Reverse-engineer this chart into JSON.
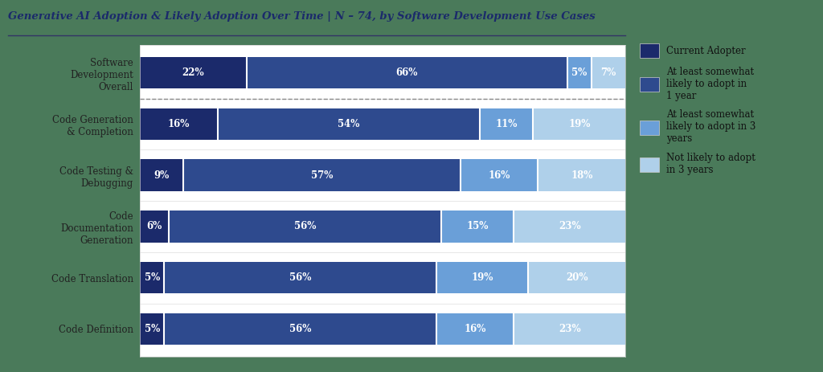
{
  "title": "Generative AI Adoption & Likely Adoption Over Time | N – 74, by Software Development Use Cases",
  "categories": [
    "Code Definition",
    "Code Translation",
    "Code\nDocumentation\nGeneration",
    "Code Testing &\nDebugging",
    "Code Generation\n& Completion",
    "Software\nDevelopment\nOverall"
  ],
  "segments": {
    "current": [
      5,
      5,
      6,
      9,
      16,
      22
    ],
    "year1": [
      56,
      56,
      56,
      57,
      54,
      66
    ],
    "year3": [
      16,
      19,
      15,
      16,
      11,
      5
    ],
    "not": [
      23,
      20,
      23,
      18,
      19,
      7
    ]
  },
  "colors": {
    "current": "#1b2a6b",
    "year1": "#2e4a8e",
    "year3": "#6a9fd8",
    "not": "#afd0ea"
  },
  "legend_labels": [
    "Current Adopter",
    "At least somewhat\nlikely to adopt in\n1 year",
    "At least somewhat\nlikely to adopt in 3\nyears",
    "Not likely to adopt\nin 3 years"
  ],
  "outer_bg": "#4a7a5a",
  "chart_bg": "#ffffff",
  "title_color": "#1b2a6b",
  "title_fontsize": 9.5,
  "bar_height": 0.62,
  "fig_width": 10.24,
  "fig_height": 4.63
}
